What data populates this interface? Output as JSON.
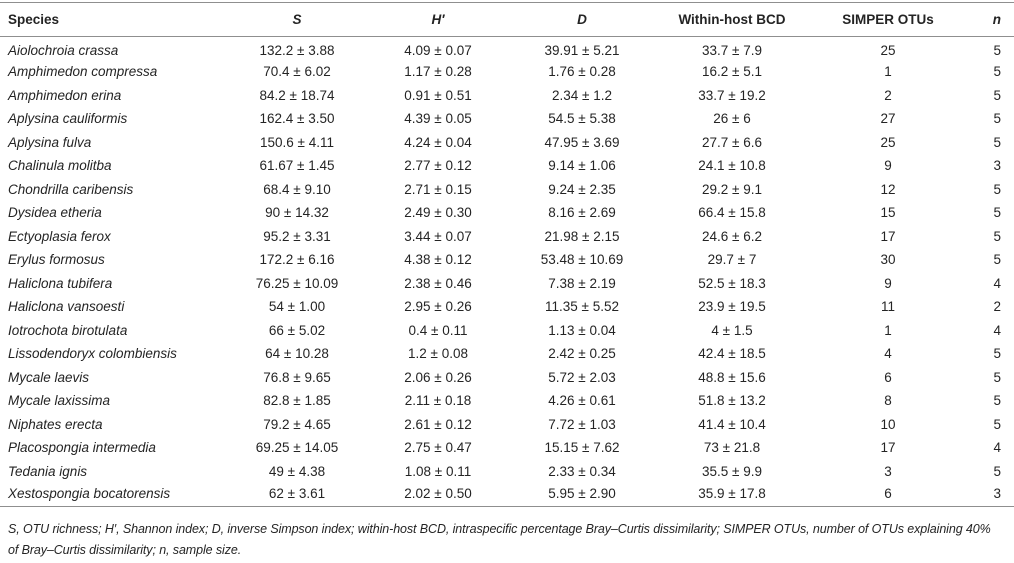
{
  "colors": {
    "text": "#242424",
    "rule_line": "#8f8f8f",
    "background": "#ffffff"
  },
  "table": {
    "columns": [
      {
        "key": "species",
        "label": "Species",
        "align": "left",
        "italic_header": false,
        "italic_values": true
      },
      {
        "key": "s",
        "label": "S",
        "align": "center",
        "italic_header": true,
        "italic_values": false
      },
      {
        "key": "h",
        "label": "H′",
        "align": "center",
        "italic_header": true,
        "italic_values": false
      },
      {
        "key": "d",
        "label": "D",
        "align": "center",
        "italic_header": true,
        "italic_values": false
      },
      {
        "key": "bcd",
        "label": "Within-host BCD",
        "align": "center",
        "italic_header": false,
        "italic_values": false
      },
      {
        "key": "simper",
        "label": "SIMPER OTUs",
        "align": "center",
        "italic_header": false,
        "italic_values": false
      },
      {
        "key": "n",
        "label": "n",
        "align": "right",
        "italic_header": true,
        "italic_values": false
      }
    ],
    "rows": [
      {
        "species": "Aiolochroia crassa",
        "s": "132.2 ± 3.88",
        "h": "4.09 ± 0.07",
        "d": "39.91 ± 5.21",
        "bcd": "33.7 ± 7.9",
        "simper": "25",
        "n": "5"
      },
      {
        "species": "Amphimedon compressa",
        "s": "70.4 ± 6.02",
        "h": "1.17 ± 0.28",
        "d": "1.76 ± 0.28",
        "bcd": "16.2 ± 5.1",
        "simper": "1",
        "n": "5"
      },
      {
        "species": "Amphimedon erina",
        "s": "84.2 ± 18.74",
        "h": "0.91 ± 0.51",
        "d": "2.34 ± 1.2",
        "bcd": "33.7 ± 19.2",
        "simper": "2",
        "n": "5"
      },
      {
        "species": "Aplysina cauliformis",
        "s": "162.4 ± 3.50",
        "h": "4.39 ± 0.05",
        "d": "54.5 ± 5.38",
        "bcd": "26 ± 6",
        "simper": "27",
        "n": "5"
      },
      {
        "species": "Aplysina fulva",
        "s": "150.6 ± 4.11",
        "h": "4.24 ± 0.04",
        "d": "47.95 ± 3.69",
        "bcd": "27.7 ± 6.6",
        "simper": "25",
        "n": "5"
      },
      {
        "species": "Chalinula molitba",
        "s": "61.67 ± 1.45",
        "h": "2.77 ± 0.12",
        "d": "9.14 ± 1.06",
        "bcd": "24.1 ± 10.8",
        "simper": "9",
        "n": "3"
      },
      {
        "species": "Chondrilla caribensis",
        "s": "68.4 ± 9.10",
        "h": "2.71 ± 0.15",
        "d": "9.24 ± 2.35",
        "bcd": "29.2 ± 9.1",
        "simper": "12",
        "n": "5"
      },
      {
        "species": "Dysidea etheria",
        "s": "90 ± 14.32",
        "h": "2.49 ± 0.30",
        "d": "8.16 ± 2.69",
        "bcd": "66.4 ± 15.8",
        "simper": "15",
        "n": "5"
      },
      {
        "species": "Ectyoplasia ferox",
        "s": "95.2 ± 3.31",
        "h": "3.44 ± 0.07",
        "d": "21.98 ± 2.15",
        "bcd": "24.6 ± 6.2",
        "simper": "17",
        "n": "5"
      },
      {
        "species": "Erylus formosus",
        "s": "172.2 ± 6.16",
        "h": "4.38 ± 0.12",
        "d": "53.48 ± 10.69",
        "bcd": "29.7 ± 7",
        "simper": "30",
        "n": "5"
      },
      {
        "species": "Haliclona tubifera",
        "s": "76.25 ± 10.09",
        "h": "2.38 ± 0.46",
        "d": "7.38 ± 2.19",
        "bcd": "52.5 ± 18.3",
        "simper": "9",
        "n": "4"
      },
      {
        "species": "Haliclona vansoesti",
        "s": "54 ± 1.00",
        "h": "2.95 ± 0.26",
        "d": "11.35 ± 5.52",
        "bcd": "23.9 ± 19.5",
        "simper": "11",
        "n": "2"
      },
      {
        "species": "Iotrochota birotulata",
        "s": "66 ± 5.02",
        "h": "0.4 ± 0.11",
        "d": "1.13 ± 0.04",
        "bcd": "4 ± 1.5",
        "simper": "1",
        "n": "4"
      },
      {
        "species": "Lissodendoryx colombiensis",
        "s": "64 ± 10.28",
        "h": "1.2 ± 0.08",
        "d": "2.42 ± 0.25",
        "bcd": "42.4 ± 18.5",
        "simper": "4",
        "n": "5"
      },
      {
        "species": "Mycale laevis",
        "s": "76.8 ± 9.65",
        "h": "2.06 ± 0.26",
        "d": "5.72 ± 2.03",
        "bcd": "48.8 ± 15.6",
        "simper": "6",
        "n": "5"
      },
      {
        "species": "Mycale laxissima",
        "s": "82.8 ± 1.85",
        "h": "2.11 ± 0.18",
        "d": "4.26 ± 0.61",
        "bcd": "51.8 ± 13.2",
        "simper": "8",
        "n": "5"
      },
      {
        "species": "Niphates erecta",
        "s": "79.2 ± 4.65",
        "h": "2.61 ± 0.12",
        "d": "7.72 ± 1.03",
        "bcd": "41.4 ± 10.4",
        "simper": "10",
        "n": "5"
      },
      {
        "species": "Placospongia intermedia",
        "s": "69.25 ± 14.05",
        "h": "2.75 ± 0.47",
        "d": "15.15 ± 7.62",
        "bcd": "73 ± 21.8",
        "simper": "17",
        "n": "4"
      },
      {
        "species": "Tedania ignis",
        "s": "49 ± 4.38",
        "h": "1.08 ± 0.11",
        "d": "2.33 ± 0.34",
        "bcd": "35.5 ± 9.9",
        "simper": "3",
        "n": "5"
      },
      {
        "species": "Xestospongia bocatorensis",
        "s": "62 ± 3.61",
        "h": "2.02 ± 0.50",
        "d": "5.95 ± 2.90",
        "bcd": "35.9 ± 17.8",
        "simper": "6",
        "n": "3"
      }
    ],
    "footnote": "S, OTU richness; H′, Shannon index; D, inverse Simpson index; within-host BCD, intraspecific percentage Bray–Curtis dissimilarity; SIMPER OTUs, number of OTUs explaining 40% of Bray–Curtis dissimilarity; n, sample size."
  }
}
